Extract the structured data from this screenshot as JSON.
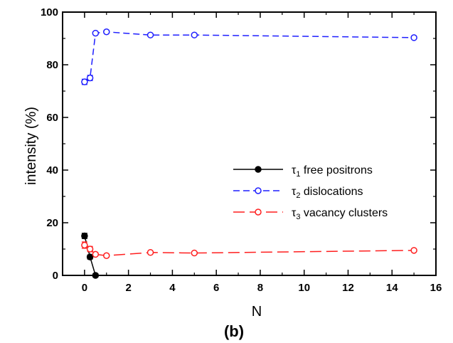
{
  "chart_data": {
    "type": "line",
    "xlabel": "N",
    "ylabel": "intensity (%)",
    "panel_label": "(b)",
    "xlim": [
      -1,
      16
    ],
    "ylim": [
      0,
      100
    ],
    "x_ticks": [
      0,
      2,
      4,
      6,
      8,
      10,
      12,
      14,
      16
    ],
    "y_ticks": [
      0,
      20,
      40,
      60,
      80,
      100
    ],
    "grid": false,
    "legend_position": "center-right",
    "series": [
      {
        "name": "free positrons",
        "symbol": "τ",
        "subscript": "1",
        "color": "#000000",
        "dash": "solid",
        "marker": "filled-circle",
        "x": [
          0,
          0.25,
          0.5
        ],
        "y": [
          15,
          7,
          0
        ],
        "errors": [
          1,
          0.8,
          0.6
        ]
      },
      {
        "name": "dislocations",
        "symbol": "τ",
        "subscript": "2",
        "color": "#1f1fff",
        "dash": "dashed",
        "marker": "open-circle",
        "x": [
          0,
          0.25,
          0.5,
          1,
          3,
          5,
          15
        ],
        "y": [
          73.5,
          75,
          92,
          92.5,
          91.3,
          91.3,
          90.3
        ],
        "errors": [
          1,
          1,
          0.5,
          0.5,
          0.5,
          0.5,
          0.5
        ]
      },
      {
        "name": "vacancy clusters",
        "symbol": "τ",
        "subscript": "3",
        "color": "#ff1f1f",
        "dash": "long-dashed",
        "marker": "open-circle",
        "x": [
          0,
          0.25,
          0.5,
          1,
          3,
          5,
          15
        ],
        "y": [
          11.5,
          10,
          8,
          7.5,
          8.7,
          8.5,
          9.5
        ],
        "errors": [
          1.2,
          1,
          0.5,
          0.5,
          0.5,
          0.5,
          0.5
        ]
      }
    ]
  }
}
